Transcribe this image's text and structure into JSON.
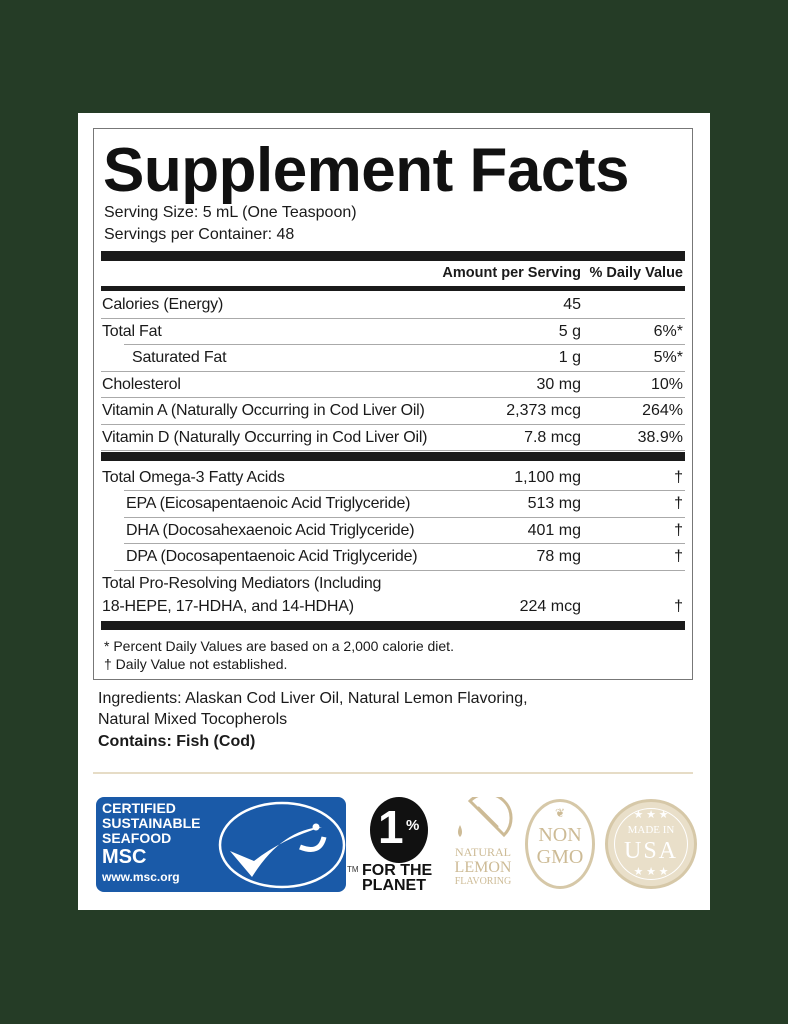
{
  "title": "Supplement Facts",
  "serving_size": "Serving Size: 5 mL (One Teaspoon)",
  "servings_per_container": "Servings per Container: 48",
  "header": {
    "amount": "Amount per Serving",
    "dv": "% Daily Value"
  },
  "rows": [
    {
      "name": "Calories (Energy)",
      "amount": "45",
      "dv": ""
    },
    {
      "name": "Total Fat",
      "amount": "5 g",
      "dv": "6%*"
    },
    {
      "name": "Saturated Fat",
      "amount": "1 g",
      "dv": "5%*",
      "indent": true
    },
    {
      "name": "Cholesterol",
      "amount": "30 mg",
      "dv": "10%"
    },
    {
      "name": "Vitamin A (Naturally Occurring in Cod Liver Oil)",
      "amount": "2,373 mcg",
      "dv": "264%"
    },
    {
      "name": "Vitamin D (Naturally Occurring in Cod Liver Oil)",
      "amount": "7.8 mcg",
      "dv": "38.9%"
    }
  ],
  "omega_rows": [
    {
      "name": "Total Omega-3 Fatty Acids",
      "amount": "1,100 mg",
      "dv": "†"
    },
    {
      "name": "EPA (Eicosapentaenoic Acid Triglyceride)",
      "amount": "513 mg",
      "dv": "†",
      "indent": true
    },
    {
      "name": "DHA (Docosahexaenoic Acid Triglyceride)",
      "amount": "401 mg",
      "dv": "†",
      "indent": true
    },
    {
      "name": "DPA (Docosapentaenoic Acid Triglyceride)",
      "amount": "78 mg",
      "dv": "†",
      "indent": true
    }
  ],
  "spm": {
    "name_line1": "Total Pro-Resolving Mediators (Including",
    "name_line2": "18-HEPE, 17-HDHA, and 14-HDHA)",
    "amount": "224 mcg",
    "dv": "†"
  },
  "footnotes": [
    "* Percent Daily Values are based on a 2,000 calorie diet.",
    "† Daily Value not established."
  ],
  "ingredients": {
    "line1": "Ingredients: Alaskan Cod Liver Oil, Natural Lemon Flavoring,",
    "line2": "Natural Mixed Tocopherols",
    "contains": "Contains: Fish (Cod)"
  },
  "logos": {
    "msc": {
      "lines": [
        "CERTIFIED",
        "SUSTAINABLE",
        "SEAFOOD"
      ],
      "brand": "MSC",
      "url": "www.msc.org",
      "tm": "TM",
      "color": "#1a5aa8"
    },
    "planet": {
      "number": "1",
      "percent": "%",
      "line1": "FOR THE",
      "line2": "PLANET"
    },
    "lemon": {
      "line1": "NATURAL",
      "line2": "LEMON",
      "line3": "FLAVORING"
    },
    "nongmo": {
      "line1": "NON",
      "line2": "GMO"
    },
    "usa": {
      "line1": "MADE IN",
      "line2": "USA",
      "stars": "★ ★ ★"
    },
    "beige": "#d6c8a8"
  },
  "colors": {
    "background": "#253c26",
    "ink": "#1a1a1a"
  }
}
